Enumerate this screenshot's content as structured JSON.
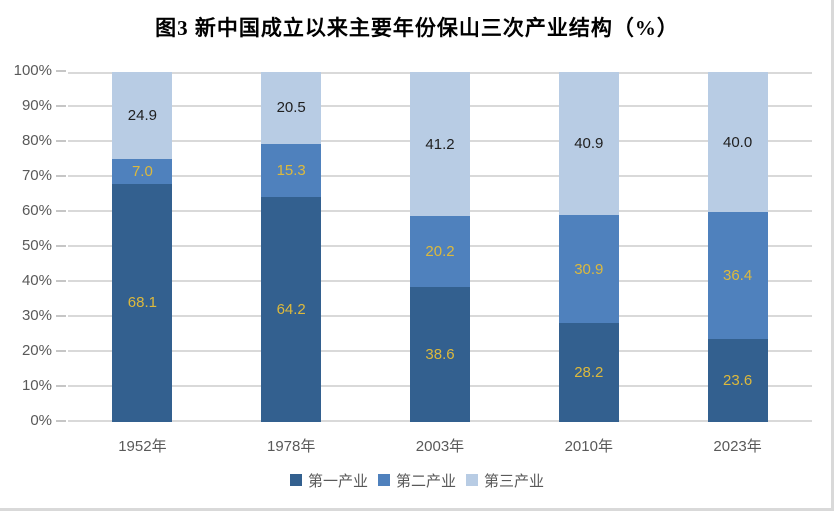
{
  "title": "图3  新中国成立以来主要年份保山三次产业结构（%）",
  "chart_data": {
    "type": "bar",
    "stacked": true,
    "percent_stacked": true,
    "title": "图3  新中国成立以来主要年份保山三次产业结构（%）",
    "categories": [
      "1952年",
      "1978年",
      "2003年",
      "2010年",
      "2023年"
    ],
    "series": [
      {
        "name": "第一产业",
        "color": "#33608F",
        "label_color": "#DDB93C",
        "values": [
          68.1,
          64.2,
          38.6,
          28.2,
          23.6
        ]
      },
      {
        "name": "第二产业",
        "color": "#4F81BD",
        "label_color": "#DDB93C",
        "values": [
          7.0,
          15.3,
          20.2,
          30.9,
          36.4
        ]
      },
      {
        "name": "第三产业",
        "color": "#B8CCE4",
        "label_color": "#1F1F1F",
        "values": [
          24.9,
          20.5,
          41.2,
          40.9,
          40.0
        ]
      }
    ],
    "xlabel": "",
    "ylabel": "",
    "ylim": [
      0,
      100
    ],
    "ytick_step": 10,
    "ytick_labels": [
      "0%",
      "10%",
      "20%",
      "30%",
      "40%",
      "50%",
      "60%",
      "70%",
      "80%",
      "90%",
      "100%"
    ],
    "grid": true,
    "legend_position": "bottom"
  },
  "style": {
    "grid_color": "#D9D9D9",
    "tick_color": "#C6C6C6",
    "axis_text_color": "#595959",
    "legend_text_color": "#595959",
    "page_border_color": "#D9D9D9",
    "background": "#FFFFFF"
  }
}
